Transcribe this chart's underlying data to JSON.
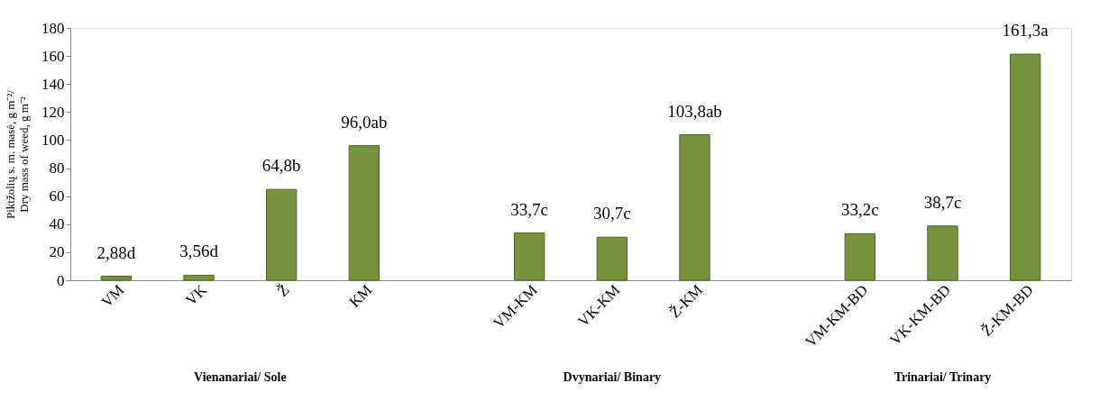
{
  "chart_data": {
    "type": "bar",
    "ylabel": "Piktžolių s. m. masė, g m⁻²/\nDry mass of weed, g m⁻²",
    "categories": [
      "VM",
      "VK",
      "Ž",
      "KM",
      null,
      "VM-KM",
      "VK-KM",
      "Ž-KM",
      null,
      "VM-KM-BD",
      "VK-KM-BD",
      "Ž-KM-BD"
    ],
    "values": [
      2.88,
      3.56,
      64.8,
      96.0,
      null,
      33.7,
      30.7,
      103.8,
      null,
      33.2,
      38.7,
      161.3
    ],
    "value_labels": [
      "2,88d",
      "3,56d",
      "64,8b",
      "96,0ab",
      null,
      "33,7c",
      "30,7c",
      "103,8ab",
      null,
      "33,2c",
      "38,7c",
      "161,3a"
    ],
    "color": "#76923c",
    "ylim": [
      0,
      180
    ],
    "yticks": [
      0,
      20,
      40,
      60,
      80,
      100,
      120,
      140,
      160,
      180
    ],
    "grid": false,
    "annotations": [
      "Vienanariai/ Sole",
      "Dvynariai/ Binary",
      "Trinariai/ Trinary"
    ]
  }
}
